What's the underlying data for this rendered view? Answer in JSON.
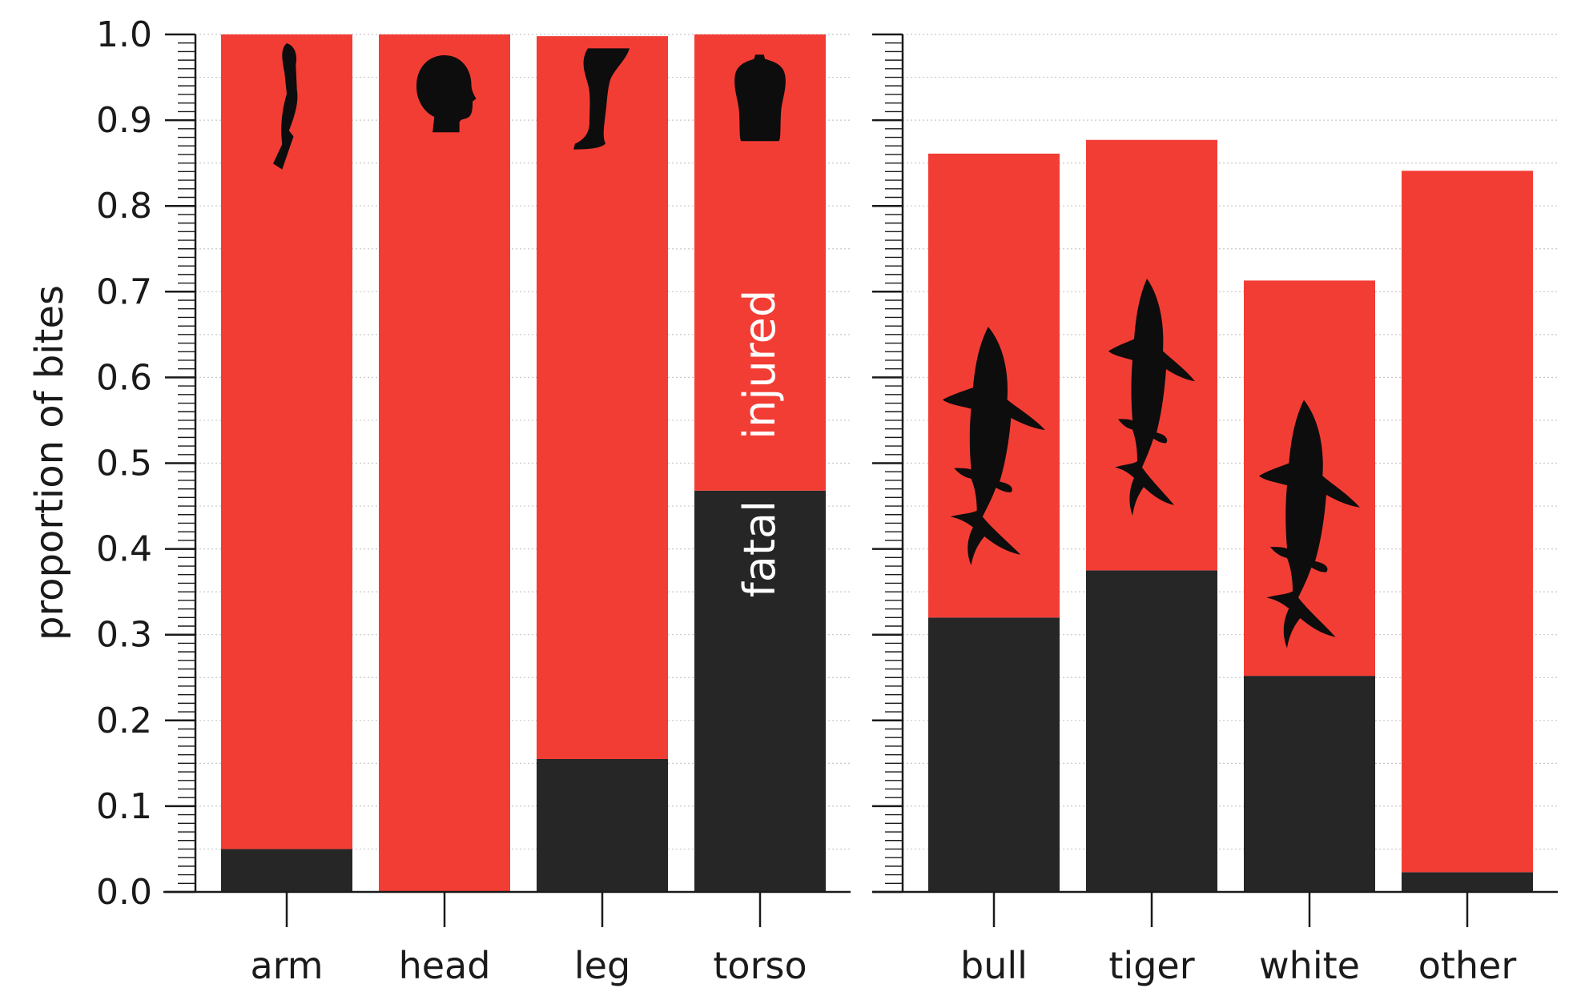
{
  "chart_data": [
    {
      "type": "bar",
      "stacked": true,
      "categories": [
        "arm",
        "head",
        "leg",
        "torso"
      ],
      "series": [
        {
          "name": "fatal",
          "values": [
            0.05,
            0.0,
            0.155,
            0.468
          ],
          "color": "#262626"
        },
        {
          "name": "injured",
          "values": [
            0.95,
            1.0,
            0.843,
            0.532
          ],
          "color": "#f23d35"
        }
      ],
      "ylabel": "proportion of bites",
      "ylim": [
        0,
        1.0
      ],
      "yticks": [
        "0.0",
        "0.1",
        "0.2",
        "0.3",
        "0.4",
        "0.5",
        "0.6",
        "0.7",
        "0.8",
        "0.9",
        "1.0"
      ],
      "grid": true,
      "icons": [
        "arm-silhouette-icon",
        "head-silhouette-icon",
        "leg-silhouette-icon",
        "torso-silhouette-icon"
      ],
      "annotations": {
        "fatal_label": "fatal",
        "injured_label": "injured"
      }
    },
    {
      "type": "bar",
      "stacked": true,
      "categories": [
        "bull",
        "tiger",
        "white",
        "other"
      ],
      "series": [
        {
          "name": "fatal",
          "values": [
            0.32,
            0.375,
            0.252,
            0.023
          ],
          "color": "#262626"
        },
        {
          "name": "injured",
          "values": [
            0.541,
            0.502,
            0.461,
            0.818
          ],
          "color": "#f23d35"
        }
      ],
      "ylim": [
        0,
        1.0
      ],
      "grid": true,
      "icons": [
        "bull-shark-icon",
        "tiger-shark-icon",
        "white-shark-icon"
      ]
    }
  ]
}
